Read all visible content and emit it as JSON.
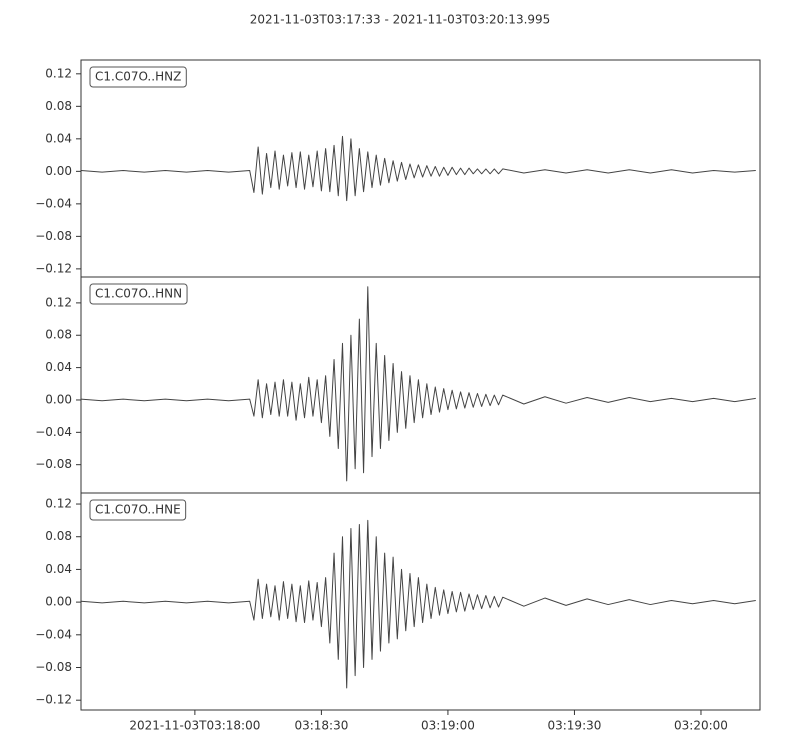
{
  "chart_data": [
    {
      "type": "line",
      "title": "2021-11-03T03:17:33  -  2021-11-03T03:20:13.995",
      "label": "C1.C07O..HNZ",
      "color": "#444444",
      "xlim": [
        11853,
        12013.995
      ],
      "ylim": [
        -0.13,
        0.137
      ],
      "yticks": [
        {
          "value": -0.12,
          "label": "−0.12"
        },
        {
          "value": -0.08,
          "label": "−0.08"
        },
        {
          "value": -0.04,
          "label": "−0.04"
        },
        {
          "value": 0,
          "label": "0.00"
        },
        {
          "value": 0.04,
          "label": "0.04"
        },
        {
          "value": 0.08,
          "label": "0.08"
        },
        {
          "value": 0.12,
          "label": "0.12"
        }
      ],
      "x": [
        11853,
        11858,
        11863,
        11868,
        11873,
        11878,
        11883,
        11888,
        11893,
        11894,
        11895,
        11896,
        11897,
        11898,
        11899,
        11900,
        11901,
        11902,
        11903,
        11904,
        11905,
        11906,
        11907,
        11908,
        11909,
        11910,
        11911,
        11912,
        11913,
        11914,
        11915,
        11916,
        11917,
        11918,
        11919,
        11920,
        11921,
        11922,
        11923,
        11924,
        11925,
        11926,
        11927,
        11928,
        11929,
        11930,
        11931,
        11932,
        11933,
        11934,
        11935,
        11936,
        11937,
        11938,
        11939,
        11940,
        11941,
        11942,
        11943,
        11944,
        11945,
        11946,
        11947,
        11948,
        11949,
        11950,
        11951,
        11952,
        11953,
        11958,
        11963,
        11968,
        11973,
        11978,
        11983,
        11988,
        11993,
        11998,
        12003,
        12008,
        12013
      ],
      "values": [
        0.001,
        -0.001,
        0.001,
        -0.001,
        0.001,
        -0.001,
        0.001,
        -0.001,
        0.001,
        -0.026,
        0.03,
        -0.028,
        0.022,
        -0.02,
        0.025,
        -0.022,
        0.02,
        -0.018,
        0.023,
        -0.02,
        0.024,
        -0.022,
        0.02,
        -0.019,
        0.025,
        -0.024,
        0.028,
        -0.025,
        0.032,
        -0.03,
        0.043,
        -0.036,
        0.04,
        -0.03,
        0.028,
        -0.025,
        0.024,
        -0.02,
        0.02,
        -0.017,
        0.016,
        -0.014,
        0.013,
        -0.012,
        0.011,
        -0.01,
        0.009,
        -0.008,
        0.008,
        -0.007,
        0.007,
        -0.006,
        0.006,
        -0.006,
        0.005,
        -0.005,
        0.005,
        -0.004,
        0.004,
        -0.004,
        0.004,
        -0.003,
        0.003,
        -0.003,
        0.003,
        -0.003,
        0.003,
        -0.003,
        0.003,
        -0.002,
        0.002,
        -0.002,
        0.002,
        -0.002,
        0.002,
        -0.002,
        0.002,
        -0.002,
        0.001,
        -0.001,
        0.001
      ]
    },
    {
      "type": "line",
      "label": "C1.C07O..HNN",
      "color": "#444444",
      "xlim": [
        11853,
        12013.995
      ],
      "ylim": [
        -0.115,
        0.152
      ],
      "yticks": [
        {
          "value": -0.08,
          "label": "−0.08"
        },
        {
          "value": -0.04,
          "label": "−0.04"
        },
        {
          "value": 0,
          "label": "0.00"
        },
        {
          "value": 0.04,
          "label": "0.04"
        },
        {
          "value": 0.08,
          "label": "0.08"
        },
        {
          "value": 0.12,
          "label": "0.12"
        }
      ],
      "x": [
        11853,
        11858,
        11863,
        11868,
        11873,
        11878,
        11883,
        11888,
        11893,
        11894,
        11895,
        11896,
        11897,
        11898,
        11899,
        11900,
        11901,
        11902,
        11903,
        11904,
        11905,
        11906,
        11907,
        11908,
        11909,
        11910,
        11911,
        11912,
        11913,
        11914,
        11915,
        11916,
        11917,
        11918,
        11919,
        11920,
        11921,
        11922,
        11923,
        11924,
        11925,
        11926,
        11927,
        11928,
        11929,
        11930,
        11931,
        11932,
        11933,
        11934,
        11935,
        11936,
        11937,
        11938,
        11939,
        11940,
        11941,
        11942,
        11943,
        11944,
        11945,
        11946,
        11947,
        11948,
        11949,
        11950,
        11951,
        11952,
        11953,
        11958,
        11963,
        11968,
        11973,
        11978,
        11983,
        11988,
        11993,
        11998,
        12003,
        12008,
        12013
      ],
      "values": [
        0.001,
        -0.001,
        0.001,
        -0.001,
        0.001,
        -0.001,
        0.001,
        -0.001,
        0.001,
        -0.02,
        0.025,
        -0.022,
        0.02,
        -0.018,
        0.022,
        -0.02,
        0.025,
        -0.02,
        0.022,
        -0.025,
        0.02,
        -0.022,
        0.028,
        -0.02,
        0.025,
        -0.028,
        0.03,
        -0.045,
        0.05,
        -0.06,
        0.07,
        -0.1,
        0.08,
        -0.085,
        0.1,
        -0.09,
        0.14,
        -0.07,
        0.07,
        -0.06,
        0.055,
        -0.05,
        0.045,
        -0.04,
        0.035,
        -0.035,
        0.03,
        -0.028,
        0.025,
        -0.022,
        0.02,
        -0.018,
        0.016,
        -0.015,
        0.014,
        -0.012,
        0.012,
        -0.011,
        0.01,
        -0.01,
        0.009,
        -0.009,
        0.008,
        -0.008,
        0.007,
        -0.007,
        0.006,
        -0.006,
        0.006,
        -0.005,
        0.004,
        -0.004,
        0.003,
        -0.003,
        0.003,
        -0.002,
        0.002,
        -0.002,
        0.002,
        -0.002,
        0.002
      ]
    },
    {
      "type": "line",
      "label": "C1.C07O..HNE",
      "color": "#444444",
      "xlim": [
        11853,
        12013.995
      ],
      "ylim": [
        -0.132,
        0.1335
      ],
      "yticks": [
        {
          "value": -0.12,
          "label": "−0.12"
        },
        {
          "value": -0.08,
          "label": "−0.08"
        },
        {
          "value": -0.04,
          "label": "−0.04"
        },
        {
          "value": 0,
          "label": "0.00"
        },
        {
          "value": 0.04,
          "label": "0.04"
        },
        {
          "value": 0.08,
          "label": "0.08"
        },
        {
          "value": 0.12,
          "label": "0.12"
        }
      ],
      "xticks": [
        {
          "value": 11880,
          "label": "2021-11-03T03:18:00"
        },
        {
          "value": 11910,
          "label": "03:18:30"
        },
        {
          "value": 11940,
          "label": "03:19:00"
        },
        {
          "value": 11970,
          "label": "03:19:30"
        },
        {
          "value": 12000,
          "label": "03:20:00"
        }
      ],
      "x": [
        11853,
        11858,
        11863,
        11868,
        11873,
        11878,
        11883,
        11888,
        11893,
        11894,
        11895,
        11896,
        11897,
        11898,
        11899,
        11900,
        11901,
        11902,
        11903,
        11904,
        11905,
        11906,
        11907,
        11908,
        11909,
        11910,
        11911,
        11912,
        11913,
        11914,
        11915,
        11916,
        11917,
        11918,
        11919,
        11920,
        11921,
        11922,
        11923,
        11924,
        11925,
        11926,
        11927,
        11928,
        11929,
        11930,
        11931,
        11932,
        11933,
        11934,
        11935,
        11936,
        11937,
        11938,
        11939,
        11940,
        11941,
        11942,
        11943,
        11944,
        11945,
        11946,
        11947,
        11948,
        11949,
        11950,
        11951,
        11952,
        11953,
        11958,
        11963,
        11968,
        11973,
        11978,
        11983,
        11988,
        11993,
        11998,
        12003,
        12008,
        12013
      ],
      "values": [
        0.001,
        -0.001,
        0.001,
        -0.001,
        0.001,
        -0.001,
        0.001,
        -0.001,
        0.001,
        -0.022,
        0.028,
        -0.02,
        0.022,
        -0.018,
        0.02,
        -0.022,
        0.025,
        -0.02,
        0.022,
        -0.024,
        0.02,
        -0.025,
        0.026,
        -0.022,
        0.024,
        -0.03,
        0.03,
        -0.05,
        0.06,
        -0.07,
        0.08,
        -0.105,
        0.09,
        -0.09,
        0.095,
        -0.08,
        0.1,
        -0.07,
        0.08,
        -0.06,
        0.06,
        -0.05,
        0.055,
        -0.045,
        0.04,
        -0.035,
        0.035,
        -0.03,
        0.03,
        -0.025,
        0.022,
        -0.02,
        0.018,
        -0.016,
        0.015,
        -0.014,
        0.013,
        -0.012,
        0.012,
        -0.011,
        0.01,
        -0.009,
        0.009,
        -0.008,
        0.008,
        -0.007,
        0.007,
        -0.006,
        0.006,
        -0.005,
        0.005,
        -0.004,
        0.004,
        -0.003,
        0.003,
        -0.003,
        0.002,
        -0.002,
        0.002,
        -0.002,
        0.002
      ]
    }
  ]
}
